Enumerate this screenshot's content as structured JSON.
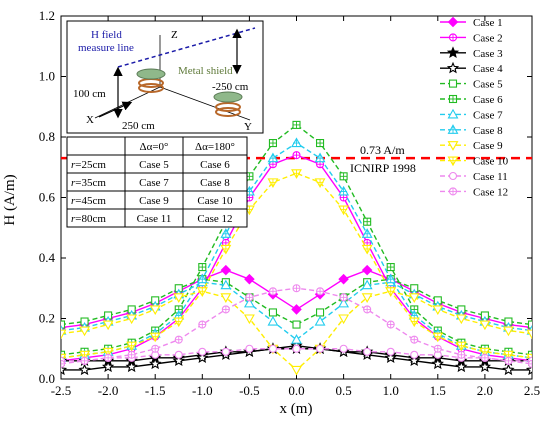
{
  "chart_data": {
    "type": "line",
    "title": "",
    "xlabel": "x (m)",
    "ylabel": "H (A/m)",
    "xlim": [
      -2.5,
      2.5
    ],
    "ylim": [
      0.0,
      1.2
    ],
    "xticks": [
      "-2.5",
      "-2.0",
      "-1.5",
      "-1.0",
      "-0.5",
      "0.0",
      "0.5",
      "1.0",
      "1.5",
      "2.0",
      "2.5"
    ],
    "yticks": [
      "0.0",
      "0.2",
      "0.4",
      "0.6",
      "0.8",
      "1.0",
      "1.2"
    ],
    "grid": false,
    "legend_position": "top-right",
    "x": [
      -2.5,
      -2.25,
      -2.0,
      -1.75,
      -1.5,
      -1.25,
      -1.0,
      -0.75,
      -0.5,
      -0.25,
      0.0,
      0.25,
      0.5,
      0.75,
      1.0,
      1.25,
      1.5,
      1.75,
      2.0,
      2.25,
      2.5
    ],
    "series": [
      {
        "name": "Case 1",
        "color": "#ff00ff",
        "dash": "solid",
        "marker": "diamond-filled",
        "values": [
          0.17,
          0.18,
          0.2,
          0.22,
          0.25,
          0.29,
          0.33,
          0.36,
          0.33,
          0.28,
          0.23,
          0.28,
          0.33,
          0.36,
          0.33,
          0.29,
          0.25,
          0.22,
          0.2,
          0.18,
          0.17
        ]
      },
      {
        "name": "Case 2",
        "color": "#ff00ff",
        "dash": "solid",
        "marker": "circle-plus",
        "values": [
          0.06,
          0.07,
          0.08,
          0.1,
          0.14,
          0.2,
          0.3,
          0.45,
          0.6,
          0.71,
          0.74,
          0.71,
          0.6,
          0.45,
          0.3,
          0.2,
          0.14,
          0.1,
          0.08,
          0.07,
          0.06
        ]
      },
      {
        "name": "Case 3",
        "color": "#000000",
        "dash": "solid",
        "marker": "star-filled",
        "values": [
          0.06,
          0.06,
          0.06,
          0.06,
          0.07,
          0.07,
          0.08,
          0.09,
          0.09,
          0.1,
          0.1,
          0.1,
          0.09,
          0.09,
          0.08,
          0.07,
          0.07,
          0.06,
          0.06,
          0.06,
          0.06
        ]
      },
      {
        "name": "Case 4",
        "color": "#000000",
        "dash": "solid",
        "marker": "star-open",
        "values": [
          0.03,
          0.03,
          0.04,
          0.04,
          0.05,
          0.06,
          0.07,
          0.08,
          0.09,
          0.1,
          0.11,
          0.1,
          0.09,
          0.08,
          0.07,
          0.06,
          0.05,
          0.04,
          0.04,
          0.03,
          0.03
        ]
      },
      {
        "name": "Case 5",
        "color": "#22bb22",
        "dash": "dashed",
        "marker": "square-open",
        "values": [
          0.18,
          0.19,
          0.21,
          0.23,
          0.26,
          0.3,
          0.33,
          0.32,
          0.27,
          0.22,
          0.18,
          0.22,
          0.27,
          0.32,
          0.33,
          0.3,
          0.26,
          0.23,
          0.21,
          0.19,
          0.18
        ]
      },
      {
        "name": "Case 6",
        "color": "#22bb22",
        "dash": "dashed",
        "marker": "square-plus",
        "values": [
          0.08,
          0.09,
          0.1,
          0.12,
          0.16,
          0.23,
          0.37,
          0.52,
          0.67,
          0.78,
          0.84,
          0.78,
          0.67,
          0.52,
          0.37,
          0.23,
          0.16,
          0.12,
          0.1,
          0.09,
          0.08
        ]
      },
      {
        "name": "Case 7",
        "color": "#22ccee",
        "dash": "dashed",
        "marker": "triangle-open",
        "values": [
          0.16,
          0.17,
          0.19,
          0.21,
          0.24,
          0.28,
          0.32,
          0.31,
          0.25,
          0.19,
          0.13,
          0.19,
          0.25,
          0.31,
          0.32,
          0.28,
          0.24,
          0.21,
          0.19,
          0.17,
          0.16
        ]
      },
      {
        "name": "Case 8",
        "color": "#22ccee",
        "dash": "dashed",
        "marker": "triangle-plus",
        "values": [
          0.07,
          0.08,
          0.09,
          0.11,
          0.15,
          0.21,
          0.33,
          0.48,
          0.62,
          0.73,
          0.78,
          0.73,
          0.62,
          0.48,
          0.33,
          0.21,
          0.15,
          0.11,
          0.09,
          0.08,
          0.07
        ]
      },
      {
        "name": "Case 9",
        "color": "#ffee00",
        "dash": "dashed",
        "marker": "triangle-down-open",
        "values": [
          0.15,
          0.16,
          0.18,
          0.2,
          0.23,
          0.27,
          0.29,
          0.27,
          0.2,
          0.1,
          0.03,
          0.1,
          0.2,
          0.27,
          0.29,
          0.27,
          0.23,
          0.2,
          0.18,
          0.16,
          0.15
        ]
      },
      {
        "name": "Case 10",
        "color": "#ffee00",
        "dash": "dashed",
        "marker": "triangle-down-plus",
        "values": [
          0.07,
          0.08,
          0.09,
          0.11,
          0.14,
          0.19,
          0.29,
          0.43,
          0.56,
          0.65,
          0.68,
          0.65,
          0.56,
          0.43,
          0.29,
          0.19,
          0.14,
          0.11,
          0.09,
          0.08,
          0.07
        ]
      },
      {
        "name": "Case 11",
        "color": "#ee88ee",
        "dash": "dashed",
        "marker": "circle-open",
        "values": [
          0.06,
          0.06,
          0.07,
          0.07,
          0.08,
          0.08,
          0.09,
          0.09,
          0.1,
          0.1,
          0.1,
          0.1,
          0.1,
          0.09,
          0.09,
          0.08,
          0.08,
          0.07,
          0.07,
          0.06,
          0.06
        ]
      },
      {
        "name": "Case 12",
        "color": "#ee88ee",
        "dash": "dashed",
        "marker": "circle-plus",
        "values": [
          0.05,
          0.06,
          0.07,
          0.08,
          0.1,
          0.13,
          0.18,
          0.23,
          0.27,
          0.29,
          0.3,
          0.29,
          0.27,
          0.23,
          0.18,
          0.13,
          0.1,
          0.08,
          0.07,
          0.06,
          0.05
        ]
      }
    ],
    "reference_line": {
      "value": 0.73,
      "color": "#ff0000",
      "dash": "dashed",
      "label": "0.73 A/m",
      "sublabel": "ICNIRP 1998"
    }
  },
  "inset": {
    "title_line1": "H field",
    "title_line2": "measure line",
    "shield_label": "Metal shield",
    "axis_z": "Z",
    "axis_x": "X",
    "axis_y": "Y",
    "dim_height": "100 cm",
    "dim_length": "250 cm",
    "dim_depth": "-250 cm"
  },
  "case_table": {
    "headers": [
      "",
      "Δα=0°",
      "Δα=180°"
    ],
    "rows": [
      {
        "r_symbol": "r",
        "r_value": "=25cm",
        "case_a": "Case 5",
        "case_b": "Case 6"
      },
      {
        "r_symbol": "r",
        "r_value": "=35cm",
        "case_a": "Case 7",
        "case_b": "Case 8"
      },
      {
        "r_symbol": "r",
        "r_value": "=45cm",
        "case_a": "Case 9",
        "case_b": "Case 10"
      },
      {
        "r_symbol": "r",
        "r_value": "=80cm",
        "case_a": "Case 11",
        "case_b": "Case 12"
      }
    ]
  }
}
